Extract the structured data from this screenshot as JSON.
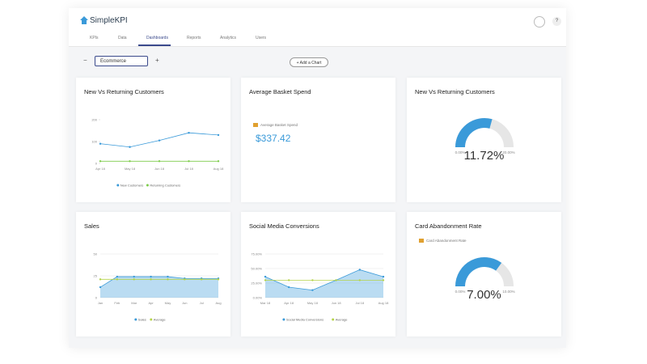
{
  "header": {
    "brand": "SimpleKPI",
    "user": "?"
  },
  "nav": [
    "KPIs",
    "Data",
    "Dashboards",
    "Reports",
    "Analytics",
    "Users"
  ],
  "toolbar": {
    "dashboard": "Ecommerce",
    "add_chart": "+ Add a Chart"
  },
  "widgets": [
    {
      "type": "line",
      "title": "New Vs Returning Customers",
      "categories": [
        "Apr 18",
        "May 18",
        "Jun 18",
        "Jul 18",
        "Aug 18"
      ],
      "ylim": [
        0,
        200
      ],
      "yticks": [
        0,
        100,
        200
      ],
      "grid": false,
      "series": [
        {
          "name": "New Customers",
          "color": "#3a9ad9",
          "values": [
            90,
            75,
            105,
            140,
            130
          ]
        },
        {
          "name": "Returning Customers",
          "color": "#7dcc4a",
          "values": [
            10,
            10,
            10,
            10,
            10
          ]
        }
      ]
    },
    {
      "type": "kpi",
      "title": "Average Basket Spend",
      "label": "Average Basket Spend",
      "value": 337.42,
      "value_label": "$337.42"
    },
    {
      "type": "gauge",
      "title": "New Vs Returning Customers",
      "min": {
        "value": 0,
        "label": "0.00%"
      },
      "max": {
        "value": 20,
        "label": "20.00%"
      },
      "value": 11.72,
      "value_label": "11.72%",
      "color": "#3a9ad9"
    },
    {
      "type": "line",
      "title": "Sales",
      "categories": [
        "Jan",
        "Feb",
        "Mar",
        "Apr",
        "May",
        "Jun",
        "Jul",
        "Aug"
      ],
      "ylim": [
        0,
        50
      ],
      "yticks": [
        0,
        25,
        50
      ],
      "grid": true,
      "series": [
        {
          "name": "Sales",
          "color": "#3a9ad9",
          "area": true,
          "values": [
            12,
            24,
            24,
            24,
            24,
            22,
            22,
            22
          ]
        },
        {
          "name": "Average",
          "color": "#b5d34a",
          "values": [
            21,
            21,
            21,
            21,
            21,
            21,
            21,
            21
          ]
        }
      ]
    },
    {
      "type": "line",
      "title": "Social Media Conversions",
      "categories": [
        "Mar 18",
        "Apr 18",
        "May 18",
        "Jun 18",
        "Jul 18",
        "Aug 18"
      ],
      "ylim": [
        0,
        75
      ],
      "yticks": [
        {
          "value": 0,
          "label": "0.00%"
        },
        {
          "value": 25,
          "label": "25.00%"
        },
        {
          "value": 50,
          "label": "50.00%"
        },
        {
          "value": 75,
          "label": "75.00%"
        }
      ],
      "grid": true,
      "series": [
        {
          "name": "Social Media Conversions",
          "color": "#3a9ad9",
          "area": true,
          "values": [
            36,
            18,
            13,
            30,
            48,
            36
          ]
        },
        {
          "name": "Average",
          "color": "#b5d34a",
          "values": [
            30,
            30,
            30,
            30,
            30,
            30
          ]
        }
      ]
    },
    {
      "type": "gauge",
      "title": "Card Abandonment Rate",
      "label": "Card Abandonment Rate",
      "min": {
        "value": 0,
        "label": "0.00%"
      },
      "max": {
        "value": 10,
        "label": "10.00%"
      },
      "value": 7.0,
      "value_label": "7.00%",
      "color": "#3a9ad9"
    }
  ]
}
